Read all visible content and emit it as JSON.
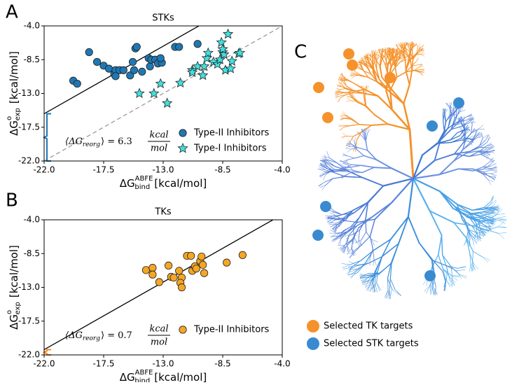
{
  "panel_labels": [
    "A",
    "B",
    "C"
  ],
  "chart_data": [
    {
      "type": "scatter",
      "title": "STKs",
      "x_label": {
        "base": "ΔG",
        "sup": "ABFE",
        "sub": "bind",
        "unit": "[kcal/mol]"
      },
      "y_label": {
        "base": "ΔG",
        "sup": "o",
        "sub": "exp",
        "unit": "[kcal/mol]"
      },
      "xlim": [
        -22,
        -4
      ],
      "ylim": [
        -22,
        -4
      ],
      "xticks": [
        {
          "value": -22,
          "label": "-22.0"
        },
        -17.5,
        {
          "value": -13,
          "label": "-13.0"
        },
        -8.5,
        {
          "value": -4,
          "label": "-4.0"
        }
      ],
      "yticks": [
        {
          "value": -22,
          "label": "-22.0"
        },
        -17.5,
        {
          "value": -13,
          "label": "-13.0"
        },
        -8.5,
        {
          "value": -4,
          "label": "-4.0"
        }
      ],
      "identity_line": true,
      "legend": "lower right",
      "annotation_color": "#1f77b4",
      "annotation": {
        "lhs": "⟨ΔG",
        "sub": "reorg",
        "eq": "⟩ =",
        "value": 6.3,
        "num": "kcal",
        "den": "mol"
      },
      "series": [
        {
          "name": "Type-II Inhibitors",
          "color": "#1f77b4",
          "marker": "circle",
          "x": [
            -19.8,
            -19.5,
            -18.6,
            -18.0,
            -17.5,
            -17.1,
            -16.7,
            -16.6,
            -16.3,
            -16.6,
            -16.0,
            -15.5,
            -15.3,
            -15.2,
            -15.1,
            -15.0,
            -14.6,
            -14.1,
            -14.0,
            -13.9,
            -13.6,
            -13.4,
            -13.1,
            -13.2,
            -12.1,
            -11.8,
            -10.4
          ],
          "values": [
            -11.3,
            -11.7,
            -7.5,
            -8.8,
            -9.3,
            -9.7,
            -10.4,
            -9.9,
            -9.9,
            -10.7,
            -9.9,
            -10.6,
            -8.8,
            -9.9,
            -7.0,
            -6.8,
            -10.1,
            -8.3,
            -9.4,
            -8.5,
            -8.5,
            -9.0,
            -8.9,
            -8.3,
            -6.8,
            -6.8,
            -6.4
          ]
        },
        {
          "name": "Type-I Inhibitors",
          "color": "#40e0e0",
          "marker": "star",
          "x": [
            -14.8,
            -13.7,
            -13.2,
            -12.7,
            -11.7,
            -10.4,
            -10.8,
            -10.8,
            -10.0,
            -9.9,
            -9.7,
            -9.6,
            -9.2,
            -8.9,
            -8.7,
            -8.6,
            -8.5,
            -8.4,
            -8.3,
            -8.1,
            -7.9,
            -7.8,
            -7.3,
            -7.2,
            -8.5
          ],
          "values": [
            -13.0,
            -13.0,
            -11.7,
            -14.3,
            -11.6,
            -9.4,
            -9.9,
            -10.2,
            -10.6,
            -9.4,
            -8.3,
            -7.6,
            -8.8,
            -9.1,
            -8.5,
            -6.2,
            -7.5,
            -7.8,
            -9.9,
            -5.1,
            -9.7,
            -8.7,
            -7.7,
            -7.6,
            -7.1
          ]
        }
      ]
    },
    {
      "type": "scatter",
      "title": "TKs",
      "x_label": {
        "base": "ΔG",
        "sup": "ABFE",
        "sub": "bind",
        "unit": "[kcal/mol]"
      },
      "y_label": {
        "base": "ΔG",
        "sup": "o",
        "sub": "exp",
        "unit": "[kcal/mol]"
      },
      "xlim": [
        -22,
        -4
      ],
      "ylim": [
        -22,
        -4
      ],
      "xticks": [
        {
          "value": -22,
          "label": "-22.0"
        },
        -17.5,
        {
          "value": -13,
          "label": "-13.0"
        },
        -8.5,
        {
          "value": -4,
          "label": "-4.0"
        }
      ],
      "yticks": [
        {
          "value": -22,
          "label": "-22.0"
        },
        -17.5,
        {
          "value": -13,
          "label": "-13.0"
        },
        -8.5,
        {
          "value": -4,
          "label": "-4.0"
        }
      ],
      "identity_line": false,
      "legend": "lower right",
      "annotation_color": "#f28e1c",
      "annotation": {
        "lhs": "⟨ΔG",
        "sub": "reorg",
        "eq": "⟩ =",
        "value": 0.7,
        "num": "kcal",
        "den": "mol"
      },
      "series": [
        {
          "name": "Type-II Inhibitors",
          "color": "#f5a623",
          "marker": "circle",
          "x": [
            -14.3,
            -13.8,
            -13.8,
            -13.3,
            -12.6,
            -12.4,
            -11.8,
            -12.2,
            -11.6,
            -11.7,
            -11.6,
            -11.2,
            -10.9,
            -10.8,
            -10.6,
            -10.5,
            -10.2,
            -10.1,
            -10.0,
            -9.9,
            -8.2,
            -7.0
          ],
          "values": [
            -10.7,
            -10.4,
            -11.3,
            -12.3,
            -10.1,
            -11.6,
            -10.8,
            -11.7,
            -11.7,
            -12.4,
            -13.0,
            -8.8,
            -8.8,
            -10.8,
            -10.2,
            -10.5,
            -9.5,
            -8.9,
            -10.0,
            -11.1,
            -9.7,
            -8.7
          ]
        }
      ]
    }
  ],
  "tree_legend": [
    {
      "label": "Selected TK targets",
      "color": "#f5922b"
    },
    {
      "label": "Selected STK targets",
      "color": "#3a8ad0"
    }
  ]
}
